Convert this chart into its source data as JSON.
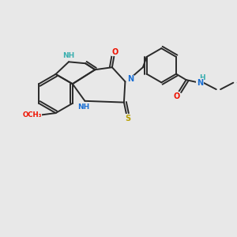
{
  "background_color": "#e8e8e8",
  "bond_color": "#2a2a2a",
  "atom_colors": {
    "N": "#1a6fd4",
    "O": "#ee1100",
    "S": "#b8a000",
    "NH_indole": "#3aafaf",
    "NH_pyrim": "#1a6fd4",
    "C": "#2a2a2a"
  }
}
